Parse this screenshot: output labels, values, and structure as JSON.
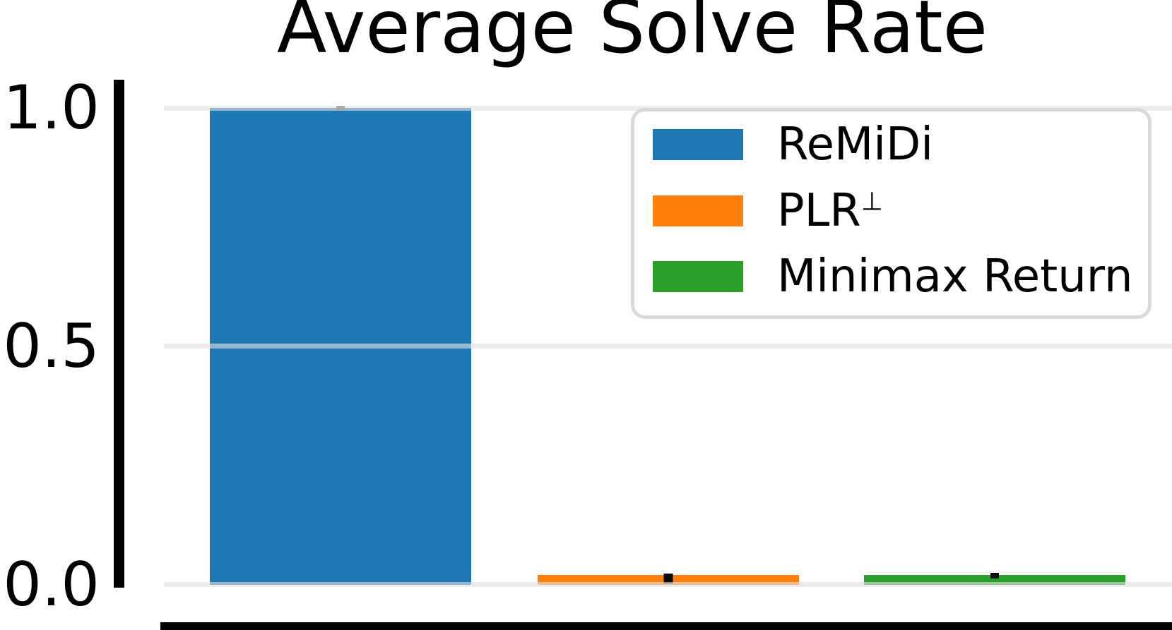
{
  "chart_data": {
    "type": "bar",
    "title": "Average Solve Rate",
    "categories": [
      "ReMiDi",
      "PLR⊥",
      "Minimax Return"
    ],
    "values": [
      1.0,
      0.02,
      0.02
    ],
    "colors": [
      "#1f77b4",
      "#ff7f0e",
      "#2ca02c"
    ],
    "xlabel": "",
    "ylabel": "",
    "ylim": [
      0.0,
      1.0
    ],
    "yticks": [
      0.0,
      0.5,
      1.0
    ],
    "ytick_labels_top_to_bottom": [
      "1.0",
      "0.5",
      "0.0"
    ],
    "xtick_labels": [],
    "grid": "horizontal gridlines at y = 0.0, 0.5, 1.0",
    "error_bars": "small caps at bar tops",
    "legend": {
      "position": "upper right",
      "items": [
        {
          "label": "ReMiDi",
          "sup": "",
          "color": "#1f77b4"
        },
        {
          "label": "PLR",
          "sup": "⊥",
          "color": "#ff7f0e"
        },
        {
          "label": "Minimax Return",
          "sup": "",
          "color": "#2ca02c"
        }
      ]
    }
  },
  "styles": {
    "axis_color": "#000000",
    "gridline_color": "#e0e0e0",
    "legend_border_color": "#d9d9d9",
    "background_color": "#ffffff"
  }
}
